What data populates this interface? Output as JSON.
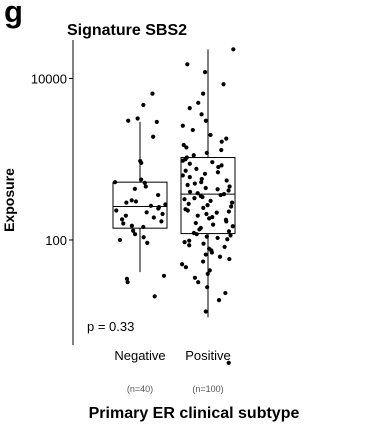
{
  "panel_label": "g",
  "chart_data": {
    "type": "box",
    "title": "Signature SBS2",
    "xlabel": "Primary ER clinical subtype",
    "ylabel": "Exposure",
    "yscale": "log",
    "ylim": [
      5,
      30000
    ],
    "yticks": [
      {
        "value": 100,
        "label": "100"
      },
      {
        "value": 10000,
        "label": "10000"
      }
    ],
    "annotation": "p = 0.33",
    "categories": [
      "Negative",
      "Positive"
    ],
    "counts": [
      "(n=40)",
      "(n=100)"
    ],
    "grid": false,
    "series": [
      {
        "box": {
          "whisker_low": 40,
          "q1": 140,
          "median": 260,
          "q3": 520,
          "whisker_high": 2900
        },
        "points": [
          6500,
          4700,
          3200,
          3000,
          2900,
          1900,
          950,
          900,
          560,
          520,
          510,
          460,
          430,
          360,
          310,
          300,
          290,
          275,
          265,
          255,
          245,
          232,
          220,
          210,
          200,
          190,
          180,
          170,
          160,
          150,
          145,
          130,
          118,
          108,
          100,
          92,
          36,
          33,
          30,
          20
        ]
      },
      {
        "box": {
          "whisker_low": 11,
          "q1": 120,
          "median": 370,
          "q3": 1050,
          "whisker_high": 23000
        },
        "points": [
          23000,
          15000,
          12000,
          8500,
          6500,
          5000,
          4300,
          3600,
          3000,
          2600,
          2300,
          2000,
          1800,
          1650,
          1500,
          1400,
          1300,
          1200,
          1120,
          1050,
          1000,
          960,
          920,
          880,
          840,
          800,
          760,
          720,
          690,
          660,
          630,
          600,
          570,
          545,
          520,
          500,
          480,
          460,
          440,
          425,
          410,
          395,
          380,
          370,
          360,
          350,
          340,
          330,
          320,
          305,
          290,
          280,
          270,
          260,
          250,
          240,
          232,
          225,
          218,
          210,
          200,
          192,
          185,
          178,
          170,
          162,
          155,
          148,
          141,
          135,
          128,
          122,
          118,
          114,
          110,
          106,
          102,
          98,
          94,
          90,
          86,
          82,
          78,
          74,
          70,
          66,
          62,
          58,
          54,
          50,
          46,
          42,
          38,
          34,
          30,
          26,
          22,
          18,
          13,
          3
        ]
      }
    ]
  }
}
